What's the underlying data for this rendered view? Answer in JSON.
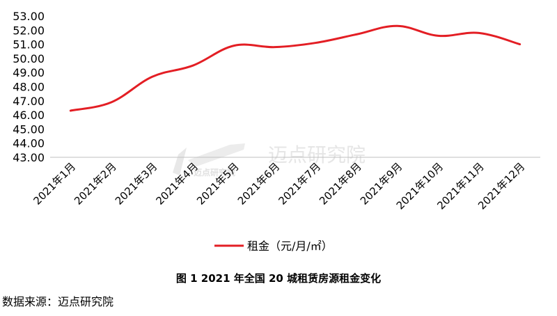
{
  "chart_data": {
    "type": "line",
    "categories": [
      "2021年1月",
      "2021年2月",
      "2021年3月",
      "2021年4月",
      "2021年5月",
      "2021年6月",
      "2021年7月",
      "2021年8月",
      "2021年9月",
      "2021年10月",
      "2021年11月",
      "2021年12月"
    ],
    "series": [
      {
        "name": "租金（元/月/㎡）",
        "values": [
          46.3,
          46.9,
          48.7,
          49.5,
          50.9,
          50.8,
          51.1,
          51.7,
          52.3,
          51.6,
          51.8,
          51.0
        ],
        "color": "#e31e24"
      }
    ],
    "yticks": [
      "43.00",
      "44.00",
      "45.00",
      "46.00",
      "47.00",
      "48.00",
      "49.00",
      "50.00",
      "51.00",
      "52.00",
      "53.00"
    ],
    "ylim": [
      43,
      53
    ],
    "grid": false,
    "legend_position": "bottom"
  },
  "caption": "图 1 2021 年全国 20 城租赁房源租金变化",
  "source": "数据来源：迈点研究院",
  "watermark": {
    "text": "迈点研究院",
    "small_text": "迈点研究院"
  }
}
